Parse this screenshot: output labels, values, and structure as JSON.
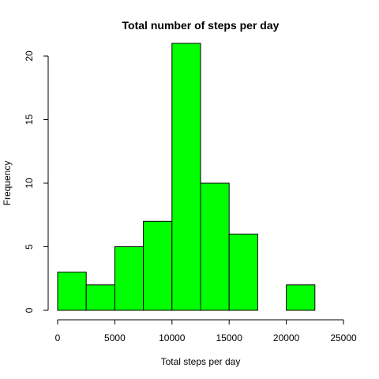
{
  "chart_data": {
    "type": "bar",
    "title": "Total number of steps per day",
    "xlabel": "Total steps per day",
    "ylabel": "Frequency",
    "bins": [
      {
        "start": 0,
        "end": 2500,
        "count": 3
      },
      {
        "start": 2500,
        "end": 5000,
        "count": 2
      },
      {
        "start": 5000,
        "end": 7500,
        "count": 5
      },
      {
        "start": 7500,
        "end": 10000,
        "count": 7
      },
      {
        "start": 10000,
        "end": 12500,
        "count": 21
      },
      {
        "start": 12500,
        "end": 15000,
        "count": 10
      },
      {
        "start": 15000,
        "end": 17500,
        "count": 6
      },
      {
        "start": 17500,
        "end": 20000,
        "count": 0
      },
      {
        "start": 20000,
        "end": 22500,
        "count": 2
      },
      {
        "start": 22500,
        "end": 25000,
        "count": 0
      }
    ],
    "xlim": [
      0,
      25000
    ],
    "ylim": [
      0,
      20
    ],
    "x_ticks": [
      0,
      5000,
      10000,
      15000,
      20000,
      25000
    ],
    "y_ticks": [
      0,
      5,
      10,
      15,
      20
    ],
    "bar_color": "#00ff00",
    "grid": false,
    "legend": "none"
  }
}
